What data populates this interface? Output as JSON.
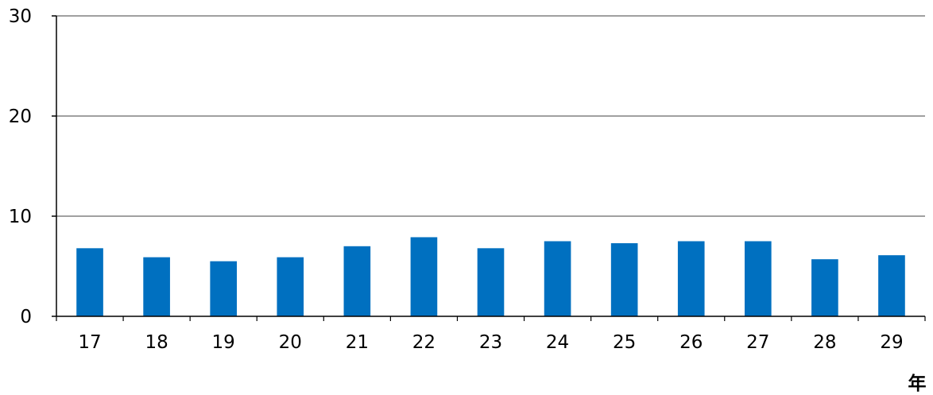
{
  "chart_data": {
    "type": "bar",
    "title": "",
    "xlabel": "年",
    "ylabel": "",
    "categories": [
      "17",
      "18",
      "19",
      "20",
      "21",
      "22",
      "23",
      "24",
      "25",
      "26",
      "27",
      "28",
      "29"
    ],
    "series": [
      {
        "values": [
          6.8,
          5.9,
          5.5,
          5.9,
          7.0,
          7.9,
          6.8,
          7.5,
          7.3,
          7.5,
          7.5,
          5.7,
          6.1
        ],
        "color": "#0070c0"
      }
    ],
    "ylim": [
      0,
      30
    ],
    "yticks": [
      0,
      10,
      20,
      30
    ],
    "grid": true,
    "legend": "none"
  }
}
